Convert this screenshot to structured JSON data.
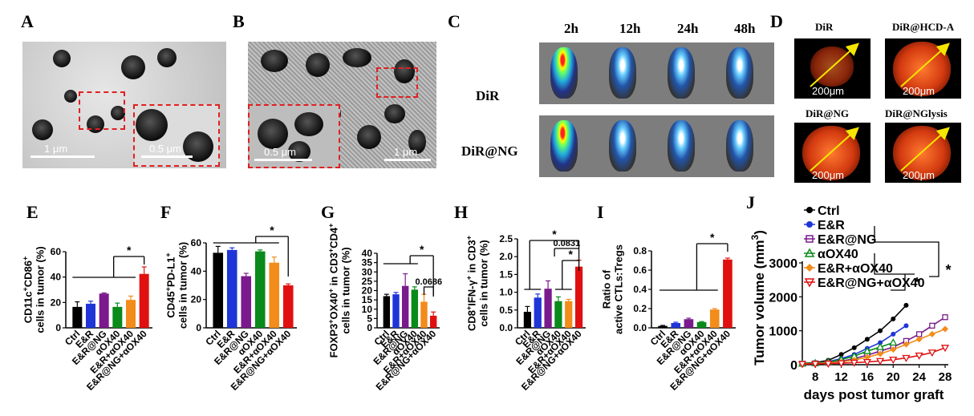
{
  "panels": {
    "A": {
      "letter": "A",
      "scale_main": "1 μm",
      "scale_inset": "0.5 μm"
    },
    "B": {
      "letter": "B",
      "scale_main": "1 μm",
      "scale_inset": "0.5 μm"
    },
    "C": {
      "letter": "C",
      "timepoints": [
        "2h",
        "12h",
        "24h",
        "48h"
      ],
      "rows": [
        "DiR",
        "DiR@NG"
      ]
    },
    "D": {
      "letter": "D",
      "titles": [
        "DiR",
        "DiR@HCD-A",
        "DiR@NG",
        "DiR@NGlysis"
      ],
      "scale": "200μm"
    }
  },
  "colors": {
    "Ctrl": "#000000",
    "E&R": "#1f35d8",
    "E&R@NG": "#7a1a8c",
    "αOX40": "#0a8a1a",
    "E&R+αOX40": "#f28c1a",
    "E&R@NG+αOX40": "#e01010"
  },
  "chart_data": [
    {
      "panel": "E",
      "type": "bar",
      "ylabel": [
        "CD11c",
        "+",
        "CD86",
        "+",
        "cells in tumor (%)"
      ],
      "ylim": [
        0,
        60
      ],
      "yticks": [
        "0",
        "20",
        "40",
        "60"
      ],
      "categories": [
        "Ctrl",
        "E&R",
        "E&R@NG",
        "αOX40",
        "E&R+αOX40",
        "E&R@NG+αOX40"
      ],
      "values": [
        16.5,
        19,
        27,
        16.5,
        22,
        42.5
      ],
      "errors": [
        4,
        2,
        0.5,
        3,
        3,
        5.5
      ],
      "annotations": [
        "*"
      ]
    },
    {
      "panel": "F",
      "type": "bar",
      "ylabel": [
        "CD45",
        "+",
        "PD-L1",
        "+",
        "cells in tumor (%)"
      ],
      "ylim": [
        0,
        60
      ],
      "yticks": [
        "0",
        "20",
        "40",
        "60"
      ],
      "categories": [
        "Ctrl",
        "E&R",
        "E&R@NG",
        "αOX40",
        "E&R+αOX40",
        "E&R@NG+αOX40"
      ],
      "values": [
        53,
        55,
        36.5,
        54,
        46,
        30
      ],
      "errors": [
        4.5,
        1.5,
        2,
        1,
        4,
        1
      ],
      "annotations": [
        "*"
      ]
    },
    {
      "panel": "G",
      "type": "bar",
      "ylabel": [
        "FOXP3",
        "+",
        "OX40",
        "+",
        " in CD3",
        "+",
        "CD4",
        "+",
        "cells in tumor (%)"
      ],
      "ylim": [
        0,
        40
      ],
      "yticks": [
        "0",
        "5",
        "10",
        "15",
        "20",
        "25",
        "30",
        "35",
        "40"
      ],
      "categories": [
        "Ctrl",
        "E&R",
        "E&R@NG",
        "αOX40",
        "E&R+αOX40",
        "E&R@NG+αOX40"
      ],
      "values": [
        17,
        18,
        22.5,
        20.5,
        14,
        6.5
      ],
      "errors": [
        1,
        1,
        6.5,
        1.5,
        4,
        2
      ],
      "annotations": [
        "*",
        "0.0686"
      ]
    },
    {
      "panel": "H",
      "type": "bar",
      "ylabel": [
        "CD8",
        "+",
        "IFN-γ",
        "+",
        " in CD3",
        "+",
        "cells in tumor (%)"
      ],
      "ylim": [
        0,
        2.5
      ],
      "yticks": [
        "0.0",
        "0.5",
        "1.0",
        "1.5",
        "2.0",
        "2.5"
      ],
      "categories": [
        "Ctrl",
        "E&R",
        "E&R@NG",
        "αOX40",
        "E&R+αOX40",
        "E&R@NG+αOX40"
      ],
      "values": [
        0.45,
        0.85,
        1.1,
        0.75,
        0.75,
        1.72
      ],
      "errors": [
        0.15,
        0.1,
        0.22,
        0.12,
        0.05,
        0.18
      ],
      "annotations": [
        "*",
        "0.0831",
        "*"
      ]
    },
    {
      "panel": "I",
      "type": "bar",
      "ylabel": [
        "Ratio of",
        "active CTLs:Tregs"
      ],
      "ylim": [
        0,
        0.8
      ],
      "yticks": [
        "0.0",
        "0.2",
        "0.4",
        "0.6",
        "0.8"
      ],
      "categories": [
        "Ctrl",
        "E&R",
        "E&R@NG",
        "αOX40",
        "E&R+αOX40",
        "E&R@NG+αOX40"
      ],
      "values": [
        0.02,
        0.05,
        0.09,
        0.06,
        0.19,
        0.71
      ],
      "errors": [
        0.005,
        0.008,
        0.01,
        0.005,
        0.01,
        0.015
      ],
      "annotations": [
        "*"
      ]
    },
    {
      "panel": "J",
      "type": "line",
      "ylabel": [
        "Tumor volume (mm",
        "3",
        ")"
      ],
      "xlabel": "days post tumor graft",
      "xlim": [
        6,
        28
      ],
      "ylim": [
        0,
        3000
      ],
      "xticks": [
        "8",
        "12",
        "16",
        "20",
        "24",
        "28"
      ],
      "yticks": [
        "0",
        "1000",
        "2000",
        "3000"
      ],
      "x": [
        6,
        8,
        10,
        12,
        14,
        16,
        18,
        20,
        22,
        24,
        26,
        28
      ],
      "series": [
        {
          "name": "Ctrl",
          "marker": "circle",
          "values": [
            40,
            60,
            130,
            300,
            500,
            750,
            1000,
            1350,
            1750,
            null,
            null,
            null
          ]
        },
        {
          "name": "E&R",
          "marker": "circle",
          "values": [
            30,
            50,
            90,
            180,
            300,
            480,
            650,
            900,
            1150,
            null,
            null,
            null
          ]
        },
        {
          "name": "E&R@NG",
          "marker": "square-open",
          "values": [
            30,
            40,
            60,
            100,
            180,
            280,
            400,
            520,
            700,
            900,
            1150,
            1400
          ]
        },
        {
          "name": "αOX40",
          "marker": "triangle-open",
          "values": [
            30,
            50,
            80,
            150,
            250,
            400,
            520,
            650,
            null,
            null,
            null,
            null
          ]
        },
        {
          "name": "E&R+αOX40",
          "marker": "diamond",
          "values": [
            25,
            35,
            50,
            80,
            140,
            220,
            320,
            450,
            600,
            750,
            900,
            1050
          ]
        },
        {
          "name": "E&R@NG+αOX40",
          "marker": "triangle-down-open",
          "values": [
            20,
            25,
            30,
            45,
            60,
            80,
            110,
            150,
            200,
            270,
            360,
            500
          ]
        }
      ],
      "annotations": [
        "*",
        "*"
      ]
    }
  ]
}
